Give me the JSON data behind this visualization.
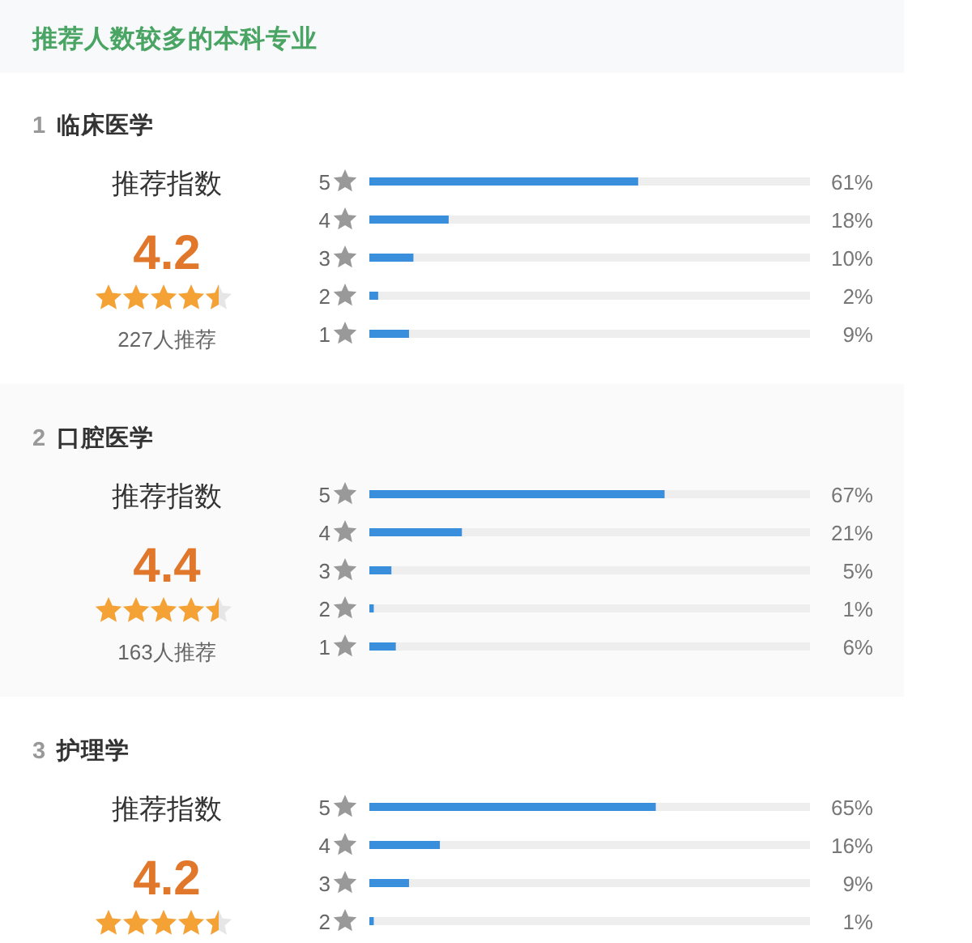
{
  "chart_data": [
    {
      "type": "other",
      "title": "推荐人数较多的本科专业"
    },
    {
      "type": "bar",
      "orientation": "horizontal",
      "annotations": [
        "1 临床医学",
        "推荐指数",
        "4.2",
        "227人推荐"
      ],
      "categories": [
        "5",
        "4",
        "3",
        "2",
        "1"
      ],
      "values": [
        61,
        18,
        10,
        2,
        9
      ],
      "value_labels": [
        "61%",
        "18%",
        "10%",
        "2%",
        "9%"
      ],
      "color": "#3a8fdc",
      "xlim": [
        0,
        100
      ],
      "tick_labels": "y"
    },
    {
      "type": "bar",
      "orientation": "horizontal",
      "annotations": [
        "2 口腔医学",
        "推荐指数",
        "4.4",
        "163人推荐"
      ],
      "categories": [
        "5",
        "4",
        "3",
        "2",
        "1"
      ],
      "values": [
        67,
        21,
        5,
        1,
        6
      ],
      "value_labels": [
        "67%",
        "21%",
        "5%",
        "1%",
        "6%"
      ],
      "color": "#3a8fdc",
      "xlim": [
        0,
        100
      ],
      "tick_labels": "y"
    },
    {
      "type": "bar",
      "orientation": "horizontal",
      "annotations": [
        "3 护理学",
        "推荐指数",
        "4.2"
      ],
      "categories": [
        "5",
        "4",
        "3",
        "2"
      ],
      "values": [
        65,
        16,
        9,
        1
      ],
      "value_labels": [
        "65%",
        "16%",
        "9%",
        "1%"
      ],
      "color": "#3a8fdc",
      "xlim": [
        0,
        100
      ],
      "tick_labels": "y"
    }
  ]
}
